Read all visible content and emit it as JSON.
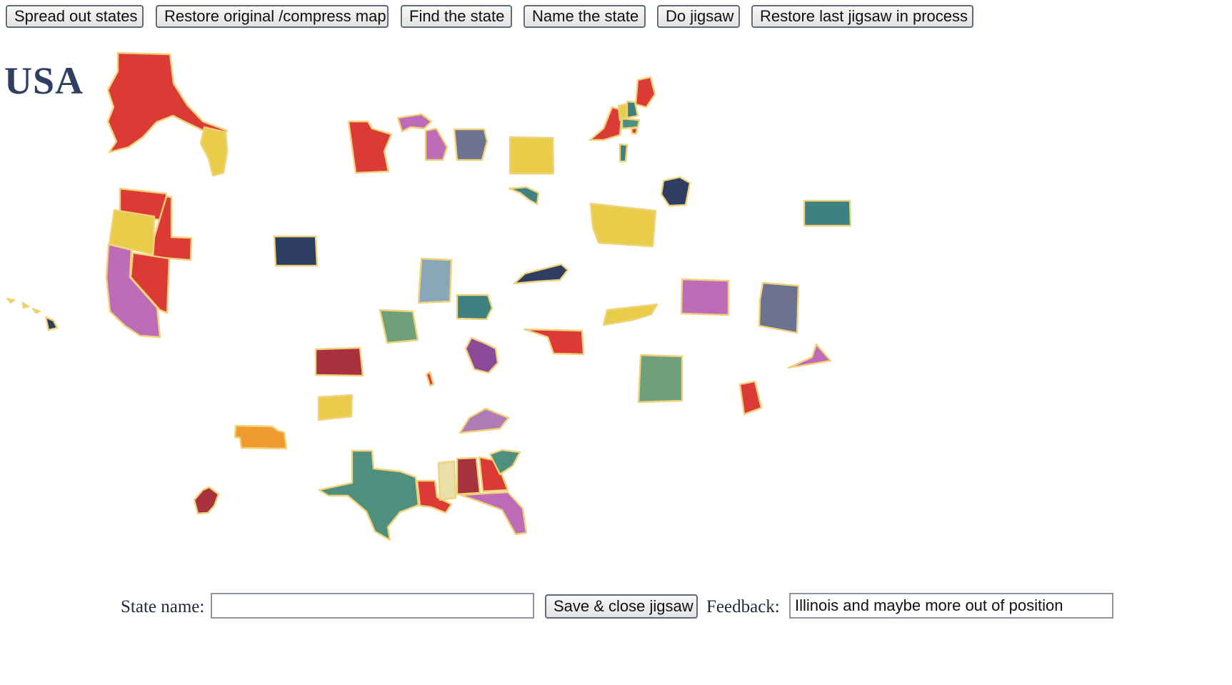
{
  "toolbar": {
    "spread_label": "Spread out states",
    "restore_label": "Restore original /compress map",
    "find_label": "Find the state",
    "name_label": "Name the state",
    "jigsaw_label": "Do jigsaw",
    "restore_jigsaw_label": "Restore last jigsaw in process"
  },
  "map": {
    "title": "USA",
    "colors": {
      "red": "#dc3b35",
      "yellow": "#e9cd4a",
      "magenta": "#c055a0",
      "slate": "#6b7391",
      "navy": "#2e3e63",
      "teal": "#3f8080",
      "sea_green": "#4f8f7d",
      "sage": "#6fa07a",
      "light_blue": "#8aa7b9",
      "purple": "#8c4a99",
      "crimson": "#a7323e",
      "orange": "#ef9a2e",
      "orchid": "#b17cb6",
      "lilac": "#bf6cb8",
      "cream": "#e9dfa8",
      "outline": "#f0d27a"
    }
  },
  "footer": {
    "state_name_label": "State name:",
    "state_name_value": "",
    "save_label": "Save & close jigsaw",
    "feedback_label": "Feedback:",
    "feedback_value": "Illinois and maybe more out of position"
  }
}
